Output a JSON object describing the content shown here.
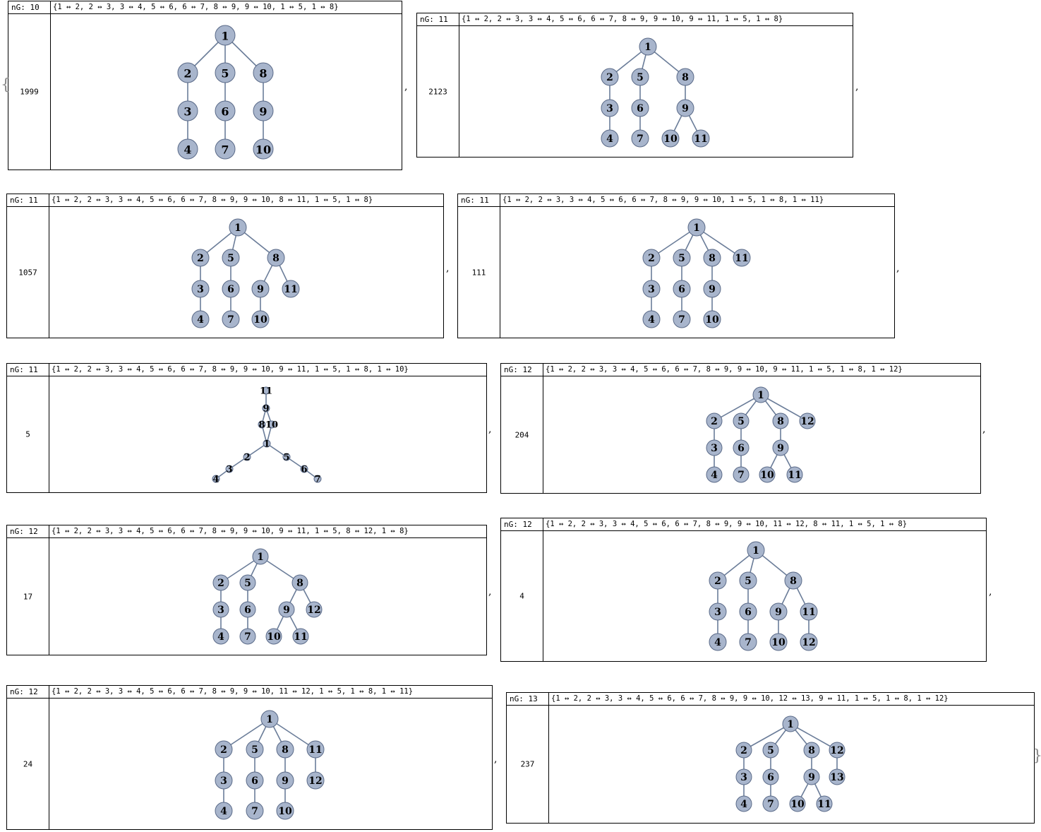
{
  "open_brace": "{",
  "close_brace": "}",
  "separator": ",",
  "panels": [
    {
      "ng": "nG: 10",
      "edges": "{1 ↔ 2, 2 ↔ 3, 3 ↔ 4, 5 ↔ 6, 6 ↔ 7, 8 ↔ 9, 9 ↔ 10, 1 ↔ 5, 1 ↔ 8}",
      "count": "1999",
      "edge_list": [
        [
          1,
          2
        ],
        [
          2,
          3
        ],
        [
          3,
          4
        ],
        [
          5,
          6
        ],
        [
          6,
          7
        ],
        [
          8,
          9
        ],
        [
          9,
          10
        ],
        [
          1,
          5
        ],
        [
          1,
          8
        ]
      ]
    },
    {
      "ng": "nG: 11",
      "edges": "{1 ↔ 2, 2 ↔ 3, 3 ↔ 4, 5 ↔ 6, 6 ↔ 7, 8 ↔ 9, 9 ↔ 10, 9 ↔ 11, 1 ↔ 5, 1 ↔ 8}",
      "count": "2123",
      "edge_list": [
        [
          1,
          2
        ],
        [
          2,
          3
        ],
        [
          3,
          4
        ],
        [
          5,
          6
        ],
        [
          6,
          7
        ],
        [
          8,
          9
        ],
        [
          9,
          10
        ],
        [
          9,
          11
        ],
        [
          1,
          5
        ],
        [
          1,
          8
        ]
      ]
    },
    {
      "ng": "nG: 11",
      "edges": "{1 ↔ 2, 2 ↔ 3, 3 ↔ 4, 5 ↔ 6, 6 ↔ 7, 8 ↔ 9, 9 ↔ 10, 8 ↔ 11, 1 ↔ 5, 1 ↔ 8}",
      "count": "1057",
      "edge_list": [
        [
          1,
          2
        ],
        [
          2,
          3
        ],
        [
          3,
          4
        ],
        [
          5,
          6
        ],
        [
          6,
          7
        ],
        [
          8,
          9
        ],
        [
          9,
          10
        ],
        [
          8,
          11
        ],
        [
          1,
          5
        ],
        [
          1,
          8
        ]
      ]
    },
    {
      "ng": "nG: 11",
      "edges": "{1 ↔ 2, 2 ↔ 3, 3 ↔ 4, 5 ↔ 6, 6 ↔ 7, 8 ↔ 9, 9 ↔ 10, 1 ↔ 5, 1 ↔ 8, 1 ↔ 11}",
      "count": "111",
      "edge_list": [
        [
          1,
          2
        ],
        [
          2,
          3
        ],
        [
          3,
          4
        ],
        [
          5,
          6
        ],
        [
          6,
          7
        ],
        [
          8,
          9
        ],
        [
          9,
          10
        ],
        [
          1,
          5
        ],
        [
          1,
          8
        ],
        [
          1,
          11
        ]
      ]
    },
    {
      "ng": "nG: 11",
      "edges": "{1 ↔ 2, 2 ↔ 3, 3 ↔ 4, 5 ↔ 6, 6 ↔ 7, 8 ↔ 9, 9 ↔ 10, 9 ↔ 11, 1 ↔ 5, 1 ↔ 8, 1 ↔ 10}",
      "count": "5",
      "edge_list": [
        [
          1,
          2
        ],
        [
          2,
          3
        ],
        [
          3,
          4
        ],
        [
          5,
          6
        ],
        [
          6,
          7
        ],
        [
          8,
          9
        ],
        [
          9,
          10
        ],
        [
          9,
          11
        ],
        [
          1,
          5
        ],
        [
          1,
          8
        ],
        [
          1,
          10
        ]
      ]
    },
    {
      "ng": "nG: 12",
      "edges": "{1 ↔ 2, 2 ↔ 3, 3 ↔ 4, 5 ↔ 6, 6 ↔ 7, 8 ↔ 9, 9 ↔ 10, 9 ↔ 11, 1 ↔ 5, 1 ↔ 8, 1 ↔ 12}",
      "count": "204",
      "edge_list": [
        [
          1,
          2
        ],
        [
          2,
          3
        ],
        [
          3,
          4
        ],
        [
          5,
          6
        ],
        [
          6,
          7
        ],
        [
          8,
          9
        ],
        [
          9,
          10
        ],
        [
          9,
          11
        ],
        [
          1,
          5
        ],
        [
          1,
          8
        ],
        [
          1,
          12
        ]
      ]
    },
    {
      "ng": "nG: 12",
      "edges": "{1 ↔ 2, 2 ↔ 3, 3 ↔ 4, 5 ↔ 6, 6 ↔ 7, 8 ↔ 9, 9 ↔ 10, 9 ↔ 11, 1 ↔ 5, 8 ↔ 12, 1 ↔ 8}",
      "count": "17",
      "edge_list": [
        [
          1,
          2
        ],
        [
          2,
          3
        ],
        [
          3,
          4
        ],
        [
          5,
          6
        ],
        [
          6,
          7
        ],
        [
          8,
          9
        ],
        [
          9,
          10
        ],
        [
          9,
          11
        ],
        [
          1,
          5
        ],
        [
          8,
          12
        ],
        [
          1,
          8
        ]
      ]
    },
    {
      "ng": "nG: 12",
      "edges": "{1 ↔ 2, 2 ↔ 3, 3 ↔ 4, 5 ↔ 6, 6 ↔ 7, 8 ↔ 9, 9 ↔ 10, 11 ↔ 12, 8 ↔ 11, 1 ↔ 5, 1 ↔ 8}",
      "count": "4",
      "edge_list": [
        [
          1,
          2
        ],
        [
          2,
          3
        ],
        [
          3,
          4
        ],
        [
          5,
          6
        ],
        [
          6,
          7
        ],
        [
          8,
          9
        ],
        [
          9,
          10
        ],
        [
          11,
          12
        ],
        [
          8,
          11
        ],
        [
          1,
          5
        ],
        [
          1,
          8
        ]
      ]
    },
    {
      "ng": "nG: 12",
      "edges": "{1 ↔ 2, 2 ↔ 3, 3 ↔ 4, 5 ↔ 6, 6 ↔ 7, 8 ↔ 9, 9 ↔ 10, 11 ↔ 12, 1 ↔ 5, 1 ↔ 8, 1 ↔ 11}",
      "count": "24",
      "edge_list": [
        [
          1,
          2
        ],
        [
          2,
          3
        ],
        [
          3,
          4
        ],
        [
          5,
          6
        ],
        [
          6,
          7
        ],
        [
          8,
          9
        ],
        [
          9,
          10
        ],
        [
          11,
          12
        ],
        [
          1,
          5
        ],
        [
          1,
          8
        ],
        [
          1,
          11
        ]
      ]
    },
    {
      "ng": "nG: 13",
      "edges": "{1 ↔ 2, 2 ↔ 3, 3 ↔ 4, 5 ↔ 6, 6 ↔ 7, 8 ↔ 9, 9 ↔ 10, 12 ↔ 13, 9 ↔ 11, 1 ↔ 5, 1 ↔ 8, 1 ↔ 12}",
      "count": "237",
      "edge_list": [
        [
          1,
          2
        ],
        [
          2,
          3
        ],
        [
          3,
          4
        ],
        [
          5,
          6
        ],
        [
          6,
          7
        ],
        [
          8,
          9
        ],
        [
          9,
          10
        ],
        [
          12,
          13
        ],
        [
          9,
          11
        ],
        [
          1,
          5
        ],
        [
          1,
          8
        ],
        [
          1,
          12
        ]
      ]
    }
  ]
}
